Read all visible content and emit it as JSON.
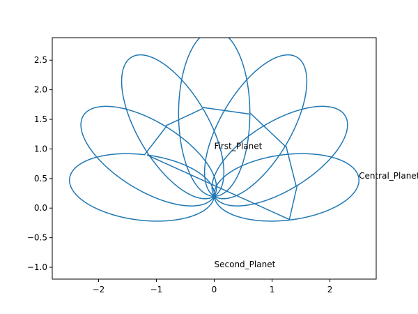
{
  "chart_data": {
    "type": "line",
    "title": "",
    "xlabel": "",
    "ylabel": "",
    "xlim": [
      -2.8,
      2.8
    ],
    "ylim": [
      -1.2,
      2.88
    ],
    "grid": false,
    "x_ticks": [
      -2,
      -1,
      0,
      1,
      2
    ],
    "x_tick_labels": [
      "−2",
      "−1",
      "0",
      "1",
      "2"
    ],
    "y_ticks": [
      -1.0,
      -0.5,
      0.0,
      0.5,
      1.0,
      1.5,
      2.0,
      2.5
    ],
    "y_tick_labels": [
      "−1.0",
      "−0.5",
      "0.0",
      "0.5",
      "1.0",
      "1.5",
      "2.0",
      "2.5"
    ],
    "series": [
      {
        "color": "#1f77b4",
        "curve": {
          "kind": "rosette",
          "petals": 7,
          "center": [
            0.0,
            0.5
          ],
          "near_point": [
            0.0,
            0.2
          ],
          "major_radius": 2.5,
          "minor_radius": 0.25,
          "petal_angles_deg": [
            0,
            25,
            55,
            90,
            125,
            155,
            180
          ],
          "phase_deg": -90
        }
      }
    ],
    "annotations": [
      {
        "text": "Central_Planet",
        "x": 2.5,
        "y": 0.5
      },
      {
        "text": "First_Planet",
        "x": 0.0,
        "y": 1.0
      },
      {
        "text": "Second_Planet",
        "x": 0.0,
        "y": -1.0
      }
    ]
  }
}
